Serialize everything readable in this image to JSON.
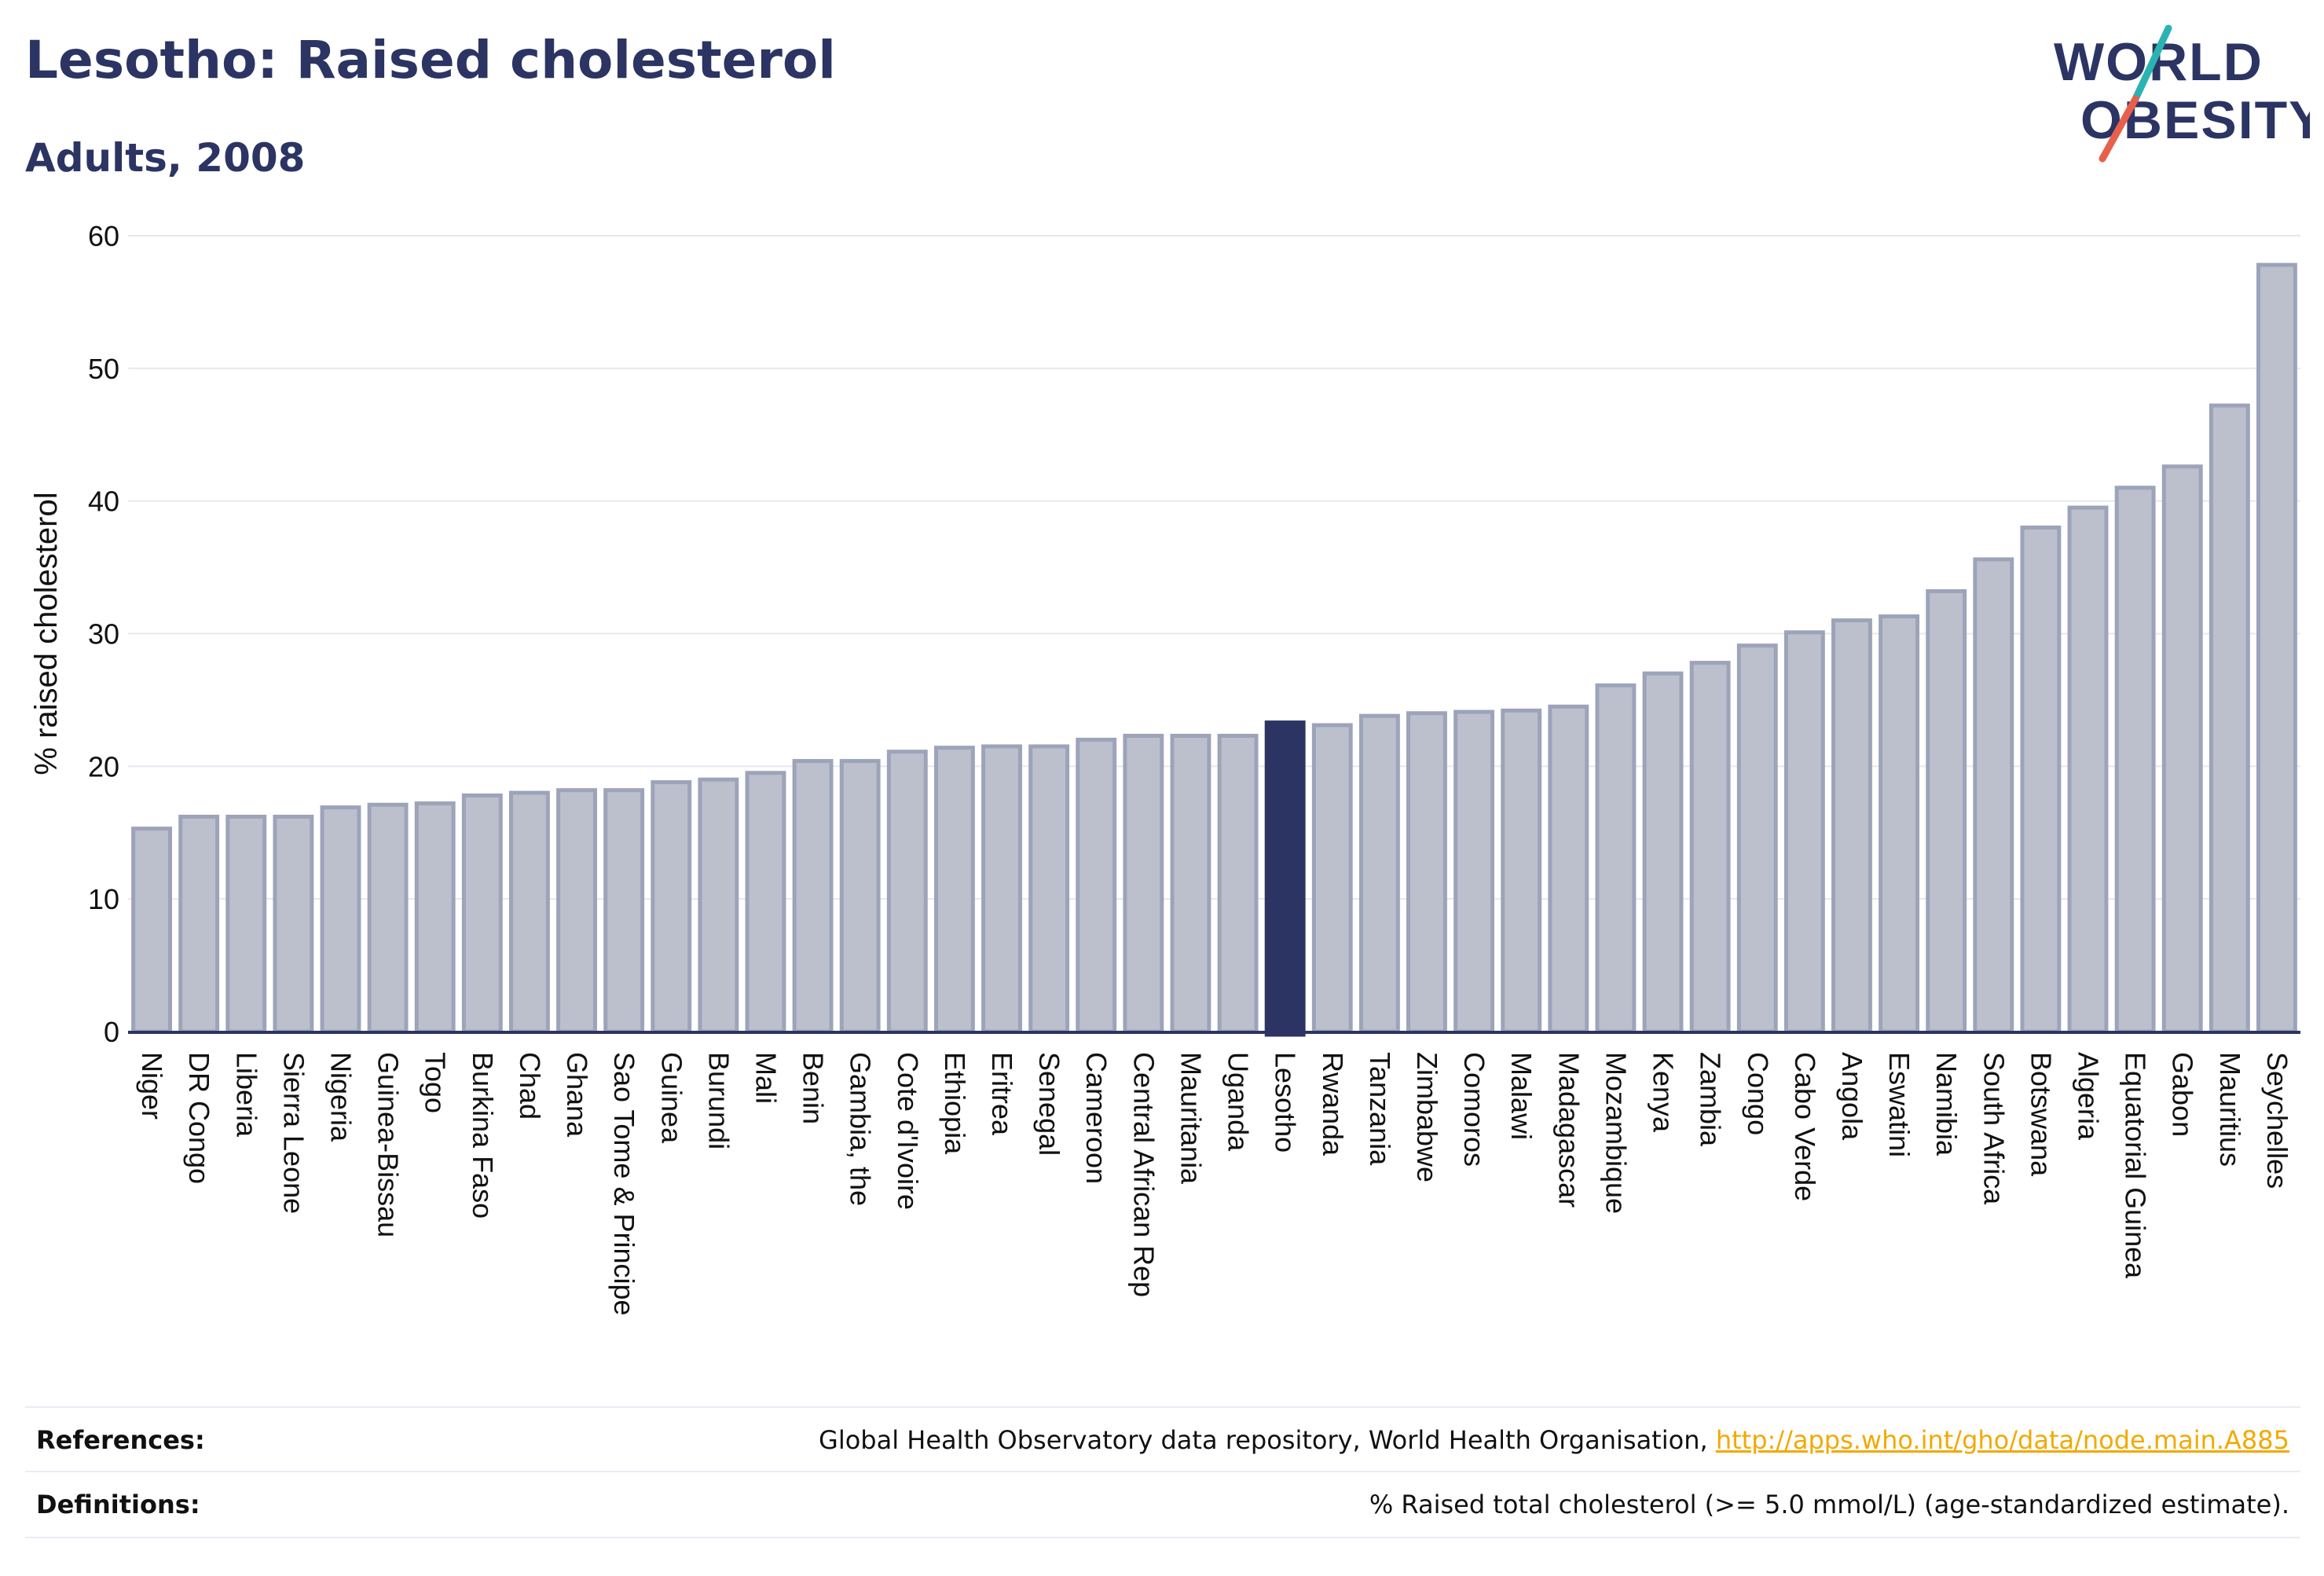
{
  "header": {
    "title": "Lesotho: Raised cholesterol",
    "subtitle": "Adults, 2008"
  },
  "logo": {
    "line1": "WORLD",
    "line2": "OBESITY",
    "colors": {
      "text": "#2b3462",
      "slash_teal": "#2ab3b1",
      "slash_coral": "#e8604c"
    }
  },
  "chart_data": {
    "type": "bar",
    "title": "",
    "ylabel": "% raised cholesterol",
    "xlabel": "",
    "ylim": [
      0,
      60
    ],
    "yticks": [
      0,
      10,
      20,
      30,
      40,
      50,
      60
    ],
    "grid": true,
    "highlight": "Lesotho",
    "colors": {
      "bar": "#bcc0cd",
      "bar_border": "#9da3b9",
      "highlight": "#2b3462",
      "grid": "#e6e8ef",
      "axis": "#2b3462"
    },
    "categories": [
      "Niger",
      "DR Congo",
      "Liberia",
      "Sierra Leone",
      "Nigeria",
      "Guinea-Bissau",
      "Togo",
      "Burkina Faso",
      "Chad",
      "Ghana",
      "Sao Tome & Principe",
      "Guinea",
      "Burundi",
      "Mali",
      "Benin",
      "Gambia, the",
      "Cote d'Ivoire",
      "Ethiopia",
      "Eritrea",
      "Senegal",
      "Cameroon",
      "Central African Rep",
      "Mauritania",
      "Uganda",
      "Lesotho",
      "Rwanda",
      "Tanzania",
      "Zimbabwe",
      "Comoros",
      "Malawi",
      "Madagascar",
      "Mozambique",
      "Kenya",
      "Zambia",
      "Congo",
      "Cabo Verde",
      "Angola",
      "Eswatini",
      "Namibia",
      "South Africa",
      "Botswana",
      "Algeria",
      "Equatorial Guinea",
      "Gabon",
      "Mauritius",
      "Seychelles"
    ],
    "values": [
      15.3,
      16.2,
      16.2,
      16.2,
      16.9,
      17.1,
      17.2,
      17.8,
      18.0,
      18.2,
      18.2,
      18.8,
      19.0,
      19.5,
      20.4,
      20.4,
      21.1,
      21.4,
      21.5,
      21.5,
      22.0,
      22.3,
      22.3,
      22.3,
      23.3,
      23.1,
      23.8,
      24.0,
      24.1,
      24.2,
      24.5,
      26.1,
      27.0,
      27.8,
      29.1,
      30.1,
      31.0,
      31.3,
      33.2,
      35.6,
      38.0,
      39.5,
      41.0,
      42.6,
      47.2,
      57.8
    ]
  },
  "footer": {
    "references_label": "References:",
    "references_text": "Global Health Observatory data repository, World Health Organisation, ",
    "references_link": "http://apps.who.int/gho/data/node.main.A885",
    "definitions_label": "Definitions:",
    "definitions_text": "% Raised total cholesterol (>= 5.0 mmol/L) (age-standardized estimate)."
  }
}
